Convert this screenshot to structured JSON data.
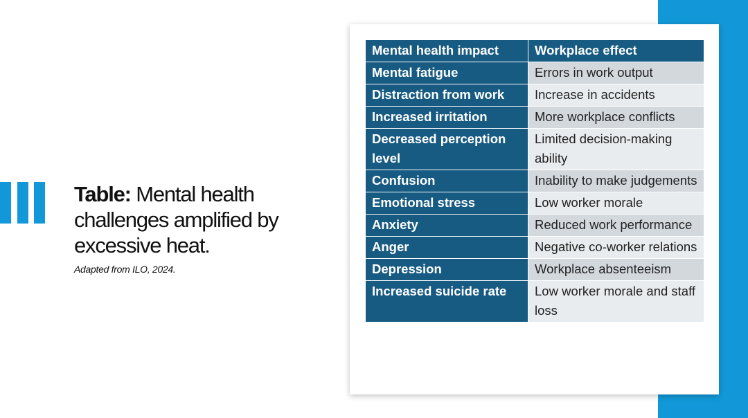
{
  "slide": {
    "title_bold": "Table:",
    "title": "Mental health challenges amplified by excessive heat.",
    "source": "Adapted from ILO, 2024."
  },
  "table": {
    "headers": [
      "Mental health impact",
      "Workplace effect"
    ],
    "rows": [
      [
        "Mental fatigue",
        "Errors in work output"
      ],
      [
        "Distraction from work",
        "Increase in accidents"
      ],
      [
        "Increased irritation",
        "More workplace conflicts"
      ],
      [
        "Decreased perception level",
        "Limited decision-making ability"
      ],
      [
        "Confusion",
        "Inability to make judgements"
      ],
      [
        "Emotional stress",
        "Low worker morale"
      ],
      [
        "Anxiety",
        "Reduced work performance"
      ],
      [
        "Anger",
        "Negative co-worker relations"
      ],
      [
        "Depression",
        "Workplace absenteeism"
      ],
      [
        "Increased suicide rate",
        "Low worker morale and staff loss"
      ]
    ]
  }
}
